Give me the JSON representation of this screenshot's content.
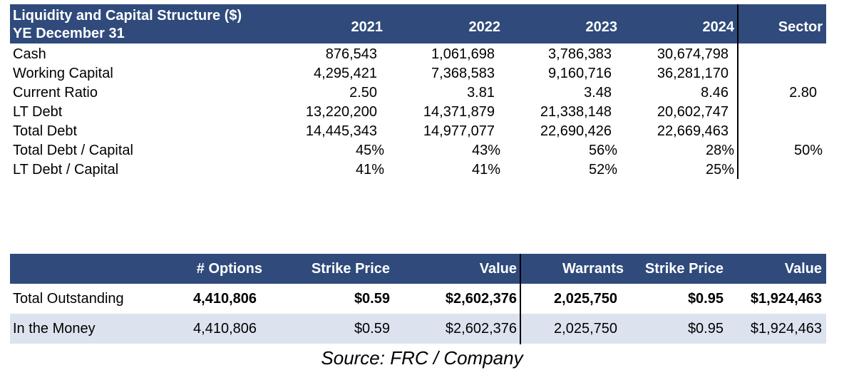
{
  "table1": {
    "title_line1": "Liquidity and Capital Structure ($)",
    "title_line2": "YE December 31",
    "years": [
      "2021",
      "2022",
      "2023",
      "2024"
    ],
    "sector_label": "Sector",
    "rows": [
      {
        "label": "Cash",
        "values": [
          "876,543",
          "1,061,698",
          "3,786,383",
          "30,674,798"
        ],
        "sector": ""
      },
      {
        "label": "Working Capital",
        "values": [
          "4,295,421",
          "7,368,583",
          "9,160,716",
          "36,281,170"
        ],
        "sector": ""
      },
      {
        "label": "Current Ratio",
        "values": [
          "2.50",
          "3.81",
          "3.48",
          "8.46"
        ],
        "sector": "2.80"
      },
      {
        "label": "LT Debt",
        "values": [
          "13,220,200",
          "14,371,879",
          "21,338,148",
          "20,602,747"
        ],
        "sector": ""
      },
      {
        "label": "Total Debt",
        "values": [
          "14,445,343",
          "14,977,077",
          "22,690,426",
          "22,669,463"
        ],
        "sector": ""
      },
      {
        "label": "Total Debt / Capital",
        "values": [
          "45%",
          "43%",
          "56%",
          "28%"
        ],
        "sector": "50%"
      },
      {
        "label": "LT Debt / Capital",
        "values": [
          "41%",
          "41%",
          "52%",
          "25%"
        ],
        "sector": ""
      }
    ]
  },
  "table2": {
    "headers": [
      "# Options",
      "Strike Price",
      "Value",
      "Warrants",
      "Strike Price",
      "Value"
    ],
    "rows": [
      {
        "label": "Total Outstanding",
        "values": [
          "4,410,806",
          "$0.59",
          "$2,602,376",
          "2,025,750",
          "$0.95",
          "$1,924,463"
        ]
      },
      {
        "label": "In the Money",
        "values": [
          "4,410,806",
          "$0.59",
          "$2,602,376",
          "2,025,750",
          "$0.95",
          "$1,924,463"
        ]
      }
    ]
  },
  "source": "Source: FRC / Company",
  "colors": {
    "header_bg": "#2f4a7b",
    "alt_row_bg": "#dce3ef"
  }
}
